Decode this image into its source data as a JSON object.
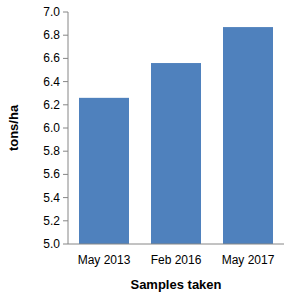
{
  "chart_data": {
    "type": "bar",
    "categories": [
      "May 2013",
      "Feb 2016",
      "May 2017"
    ],
    "values": [
      6.26,
      6.56,
      6.87
    ],
    "color": "#4f81bd",
    "xlabel": "Samples taken",
    "ylabel": "tons/ha",
    "ylim": [
      5,
      7
    ],
    "yticks": [
      {
        "value": 5,
        "label": "5.0"
      },
      5.2,
      5.4,
      5.6,
      5.8,
      {
        "value": 6,
        "label": "6.0"
      },
      6.2,
      6.4,
      6.6,
      6.8,
      {
        "value": 7,
        "label": "7.0"
      }
    ],
    "grid": false
  }
}
